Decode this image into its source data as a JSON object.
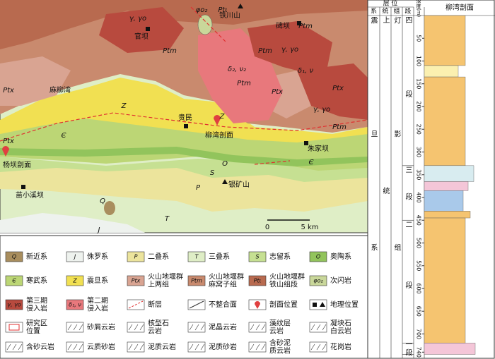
{
  "map": {
    "labels": [
      "γ, γο",
      "官坝",
      "φο₂",
      "Ptι",
      "铁川山",
      "碑坝",
      "Ptm",
      "Ptm",
      "Ptm",
      "γ, γο",
      "δ₂, ν₂",
      "δ₁, ν",
      "Ptm",
      "Ptx",
      "Ptx",
      "麻柳湾",
      "Z",
      "Ptx",
      "γ, γο",
      "贵民",
      "Z",
      "柳湾剖面",
      "Ptm",
      "Є",
      "Ptx",
      "杨坝剖面",
      "朱家坝",
      "O",
      "Є",
      "S",
      "银矿山",
      "P",
      "苗小溪坝",
      "Q",
      "T",
      "J"
    ],
    "scale": {
      "zero": "0",
      "length": "5 km"
    }
  },
  "legend": {
    "items": [
      {
        "symbol": "Q",
        "label": [
          "新近系"
        ]
      },
      {
        "symbol": "J",
        "label": [
          "侏罗系"
        ]
      },
      {
        "symbol": "P",
        "label": [
          "二叠系"
        ]
      },
      {
        "symbol": "T",
        "label": [
          "三叠系"
        ]
      },
      {
        "symbol": "S",
        "label": [
          "志留系"
        ]
      },
      {
        "symbol": "O",
        "label": [
          "奥陶系"
        ]
      },
      {
        "symbol": "Є",
        "label": [
          "寒武系"
        ]
      },
      {
        "symbol": "Z",
        "label": [
          "震旦系"
        ]
      },
      {
        "symbol": "Ptx",
        "label": [
          "火山地堰群",
          "上两组"
        ]
      },
      {
        "symbol": "Ptm",
        "label": [
          "火山地堰群",
          "麻窝子组"
        ]
      },
      {
        "symbol": "Ptι",
        "label": [
          "火山地堰群",
          "铁山组段"
        ]
      },
      {
        "symbol": "φο₂",
        "label": [
          "次闪岩"
        ]
      },
      {
        "symbol": "γ, γο",
        "label": [
          "第三期",
          "侵入岩"
        ]
      },
      {
        "symbol": "δ₁, ν",
        "label": [
          "第二期",
          "侵入岩"
        ]
      },
      {
        "label": [
          "断层"
        ]
      },
      {
        "label": [
          "不整合面"
        ]
      },
      {
        "label": [
          "剖面位置"
        ]
      },
      {
        "label": [
          "地理位置"
        ]
      },
      {
        "label": [
          "研究区",
          "位置"
        ]
      },
      {
        "label": [
          "砂屑云岩"
        ]
      },
      {
        "label": [
          "核型石",
          "云岩"
        ]
      },
      {
        "label": [
          "泥晶云岩"
        ]
      },
      {
        "label": [
          "藻纹层",
          "云岩"
        ]
      },
      {
        "label": [
          "凝块石",
          "白云岩"
        ]
      },
      {
        "label": [
          "含砂云岩"
        ]
      },
      {
        "label": [
          "云质砂岩"
        ]
      },
      {
        "label": [
          "泥质云岩"
        ]
      },
      {
        "label": [
          "泥质砂岩"
        ]
      },
      {
        "label": [
          "含砂泥",
          "质云岩"
        ]
      },
      {
        "label": [
          "花岗岩"
        ]
      }
    ]
  },
  "column": {
    "header": {
      "position": "层 位",
      "system": "系",
      "series": "统",
      "formation": "组",
      "member": "段",
      "depth": "深度(m)",
      "section": "柳湾剖面"
    },
    "system": "震旦系",
    "series": "上统",
    "formation": "灯影组",
    "members": [
      "四段",
      "三段",
      "二段",
      "一段"
    ],
    "depth_ticks": [
      50,
      100,
      150,
      200,
      250,
      300,
      350,
      400,
      450,
      500,
      550,
      600,
      650,
      700,
      740
    ]
  }
}
